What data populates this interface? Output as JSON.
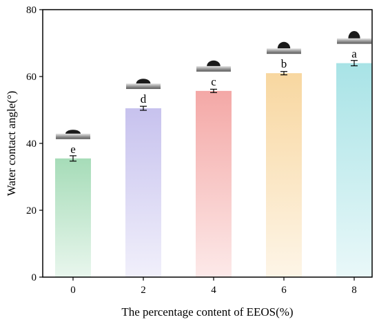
{
  "chart_data": {
    "type": "bar",
    "title": "",
    "xlabel": "The percentage content of EEOS(%)",
    "ylabel": "Water contact angle(°)",
    "ylim": [
      0,
      80
    ],
    "yticks": [
      0,
      20,
      40,
      60,
      80
    ],
    "grid": false,
    "legend": "none",
    "categories": [
      "0",
      "2",
      "4",
      "6",
      "8"
    ],
    "values": [
      35.5,
      50.5,
      55.7,
      61.0,
      64.0
    ],
    "errors": [
      0.8,
      0.6,
      0.5,
      0.5,
      0.8
    ],
    "significance_letters": [
      "e",
      "d",
      "c",
      "b",
      "a"
    ],
    "bar_colors": [
      "#a6dcb8",
      "#c7c2ee",
      "#f4a8a6",
      "#f8d7a0",
      "#a8e3e6"
    ],
    "annotation": "water droplet image above each bar"
  }
}
